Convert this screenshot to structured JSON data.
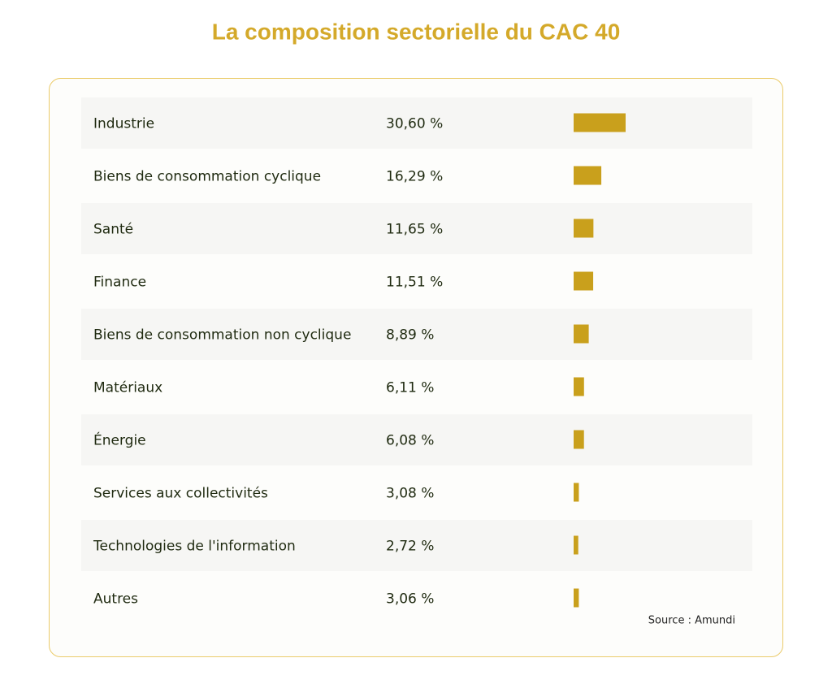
{
  "chart_data": {
    "type": "bar",
    "title": "La composition sectorielle du CAC 40",
    "categories": [
      "Industrie",
      "Biens de consommation cyclique",
      "Santé",
      "Finance",
      "Biens de consommation non cyclique",
      "Matériaux",
      "Énergie",
      "Services aux collectivités",
      "Technologies de l'information",
      "Autres"
    ],
    "values": [
      30.6,
      16.29,
      11.65,
      11.51,
      8.89,
      6.11,
      6.08,
      3.08,
      2.72,
      3.06
    ],
    "value_labels": [
      "30,60 %",
      "16,29 %",
      "11,65 %",
      "11,51 %",
      "8,89 %",
      "6,11 %",
      "6,08 %",
      "3,08 %",
      "2,72 %",
      "3,06 %"
    ],
    "color": "#c9a01c",
    "note": "Source : Amundi"
  }
}
